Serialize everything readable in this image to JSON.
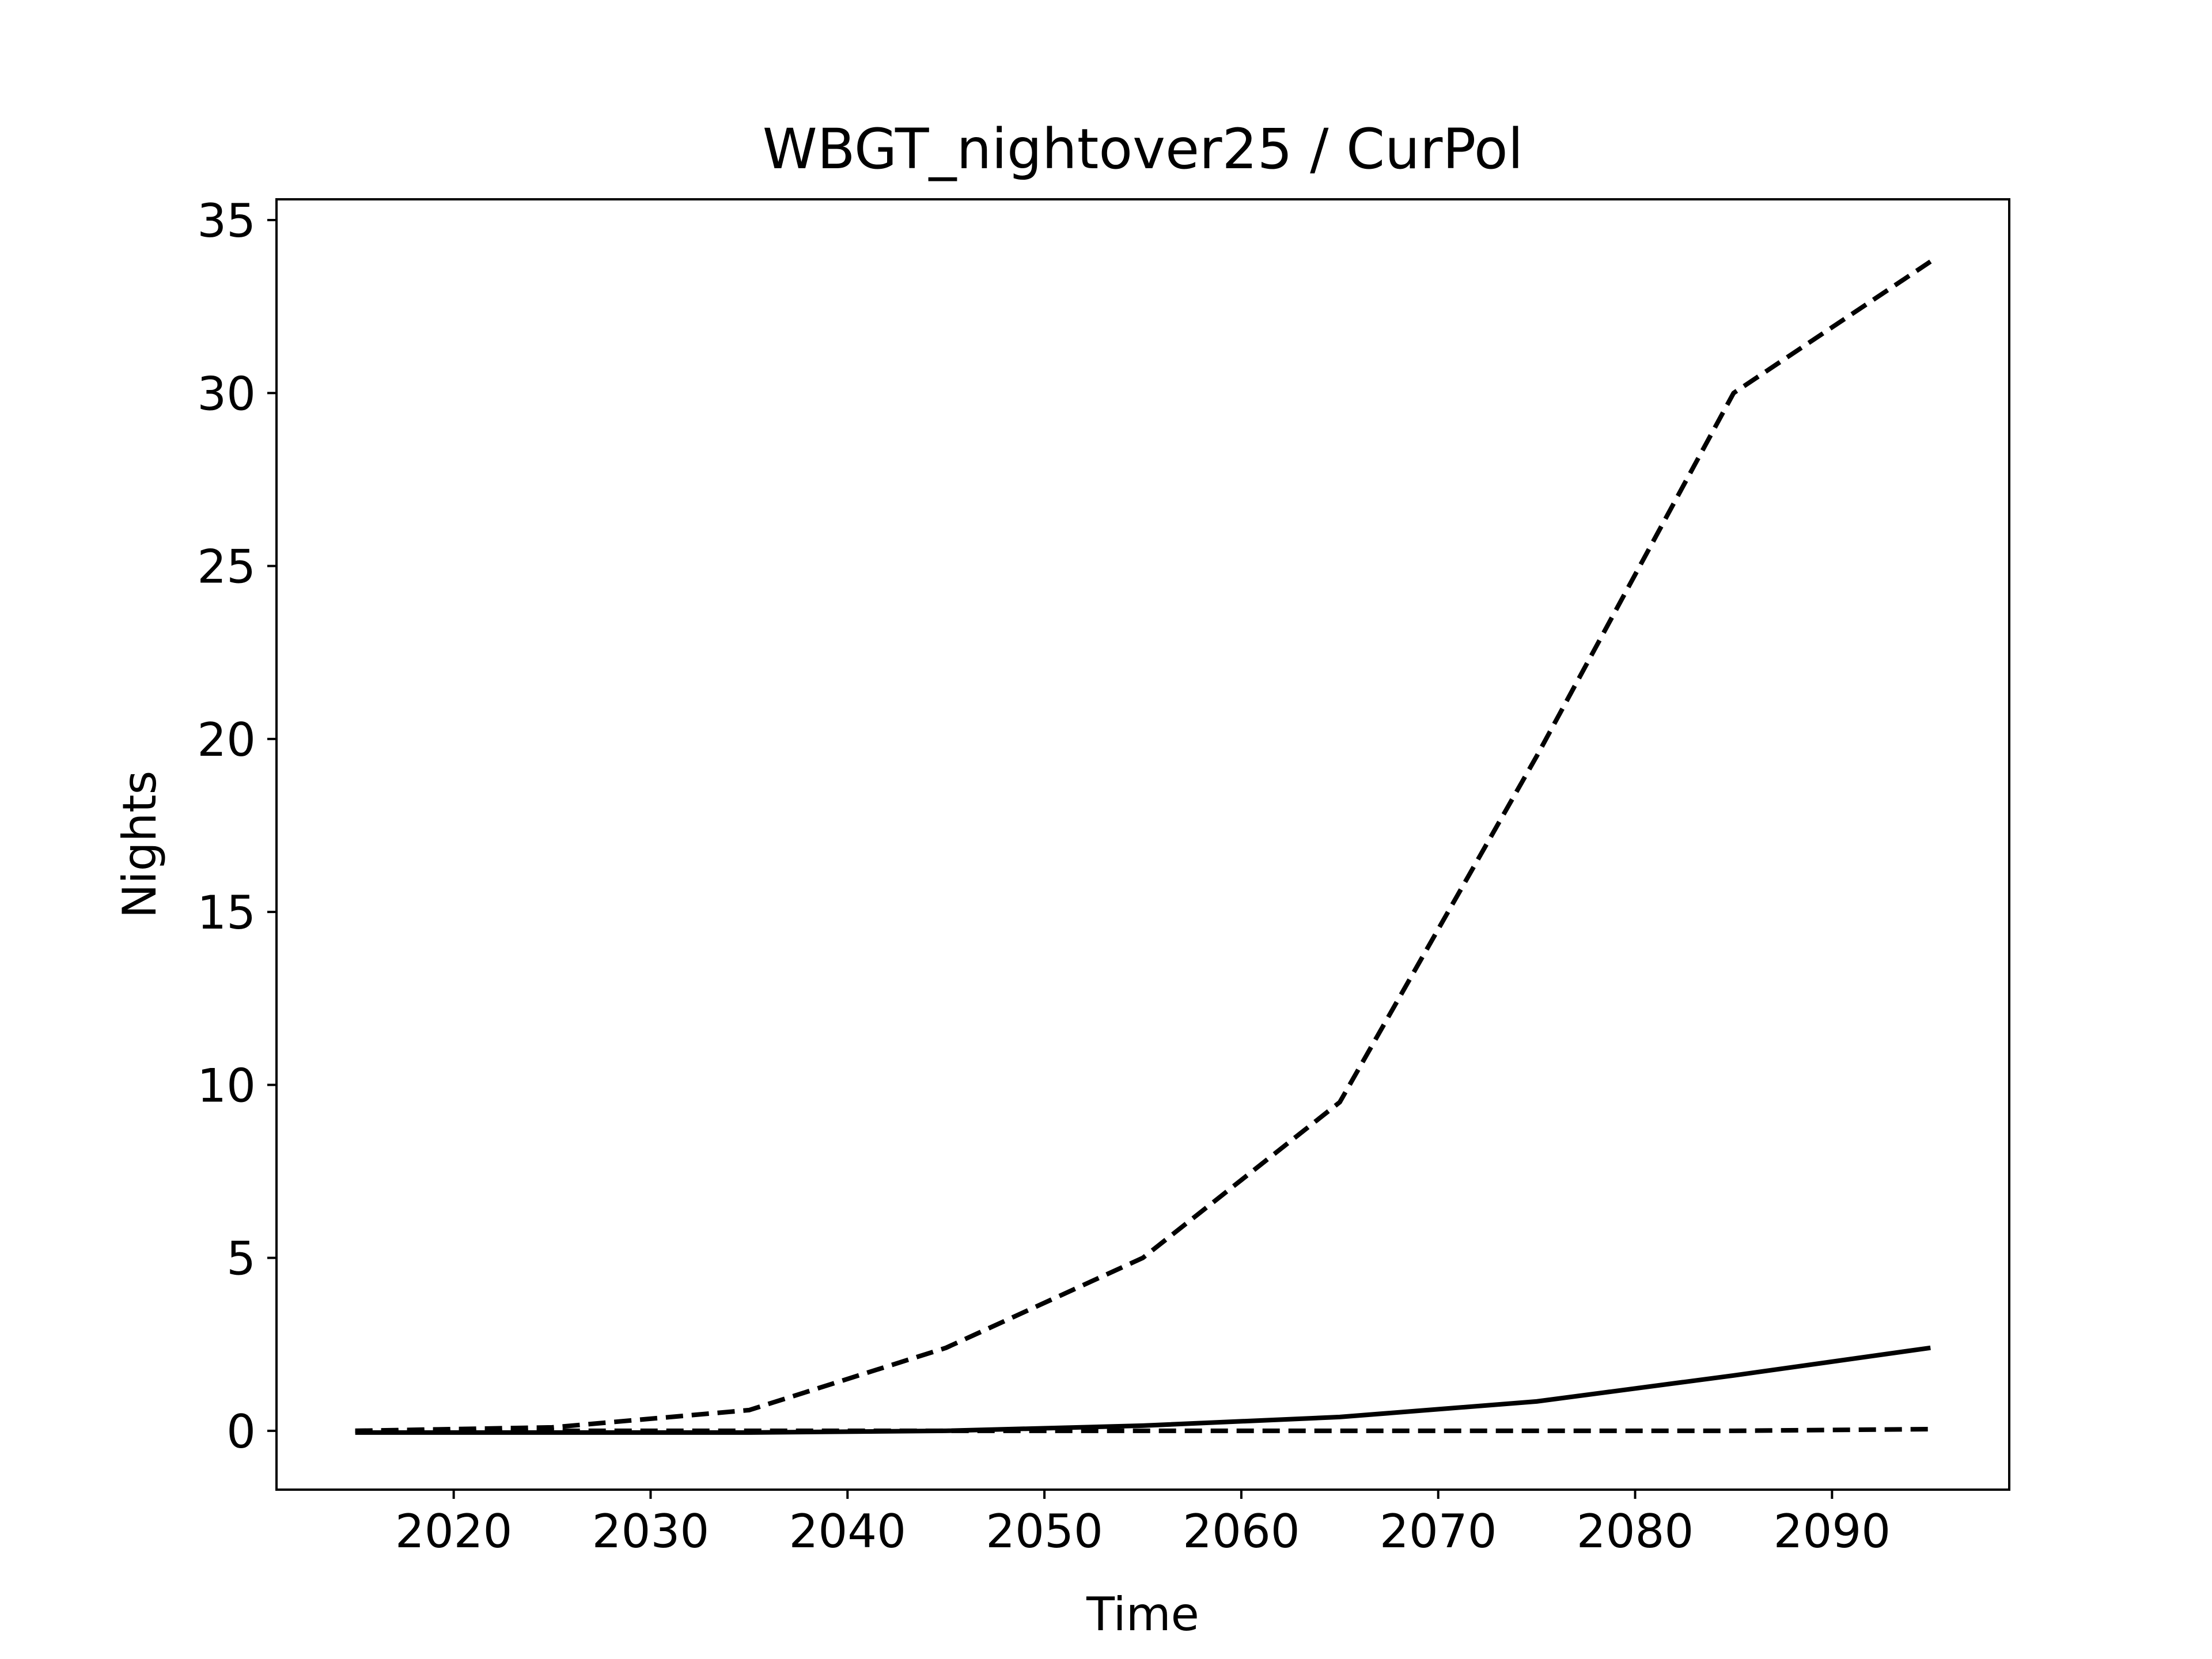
{
  "chart_data": {
    "type": "line",
    "title": "WBGT_nightover25 / CurPol",
    "xlabel": "Time",
    "ylabel": "Nights",
    "xlim": [
      2011,
      2099
    ],
    "ylim": [
      -1.7,
      35.6
    ],
    "xticks": [
      2020,
      2030,
      2040,
      2050,
      2060,
      2070,
      2080,
      2090
    ],
    "yticks": [
      0,
      5,
      10,
      15,
      20,
      25,
      30,
      35
    ],
    "grid": false,
    "legend": "none",
    "x": [
      2015,
      2025,
      2035,
      2045,
      2055,
      2065,
      2075,
      2085,
      2095
    ],
    "series": [
      {
        "style": "dashed",
        "color": "#000000",
        "values": [
          0.0,
          0.1,
          0.6,
          2.4,
          5.0,
          9.5,
          19.5,
          30.0,
          33.8
        ]
      },
      {
        "style": "solid",
        "color": "#000000",
        "values": [
          -0.05,
          -0.05,
          -0.05,
          0.0,
          0.15,
          0.4,
          0.85,
          1.6,
          2.4
        ]
      },
      {
        "style": "dashed",
        "color": "#000000",
        "values": [
          0.0,
          0.0,
          0.0,
          0.0,
          0.0,
          0.0,
          0.0,
          0.0,
          0.05
        ]
      }
    ]
  }
}
